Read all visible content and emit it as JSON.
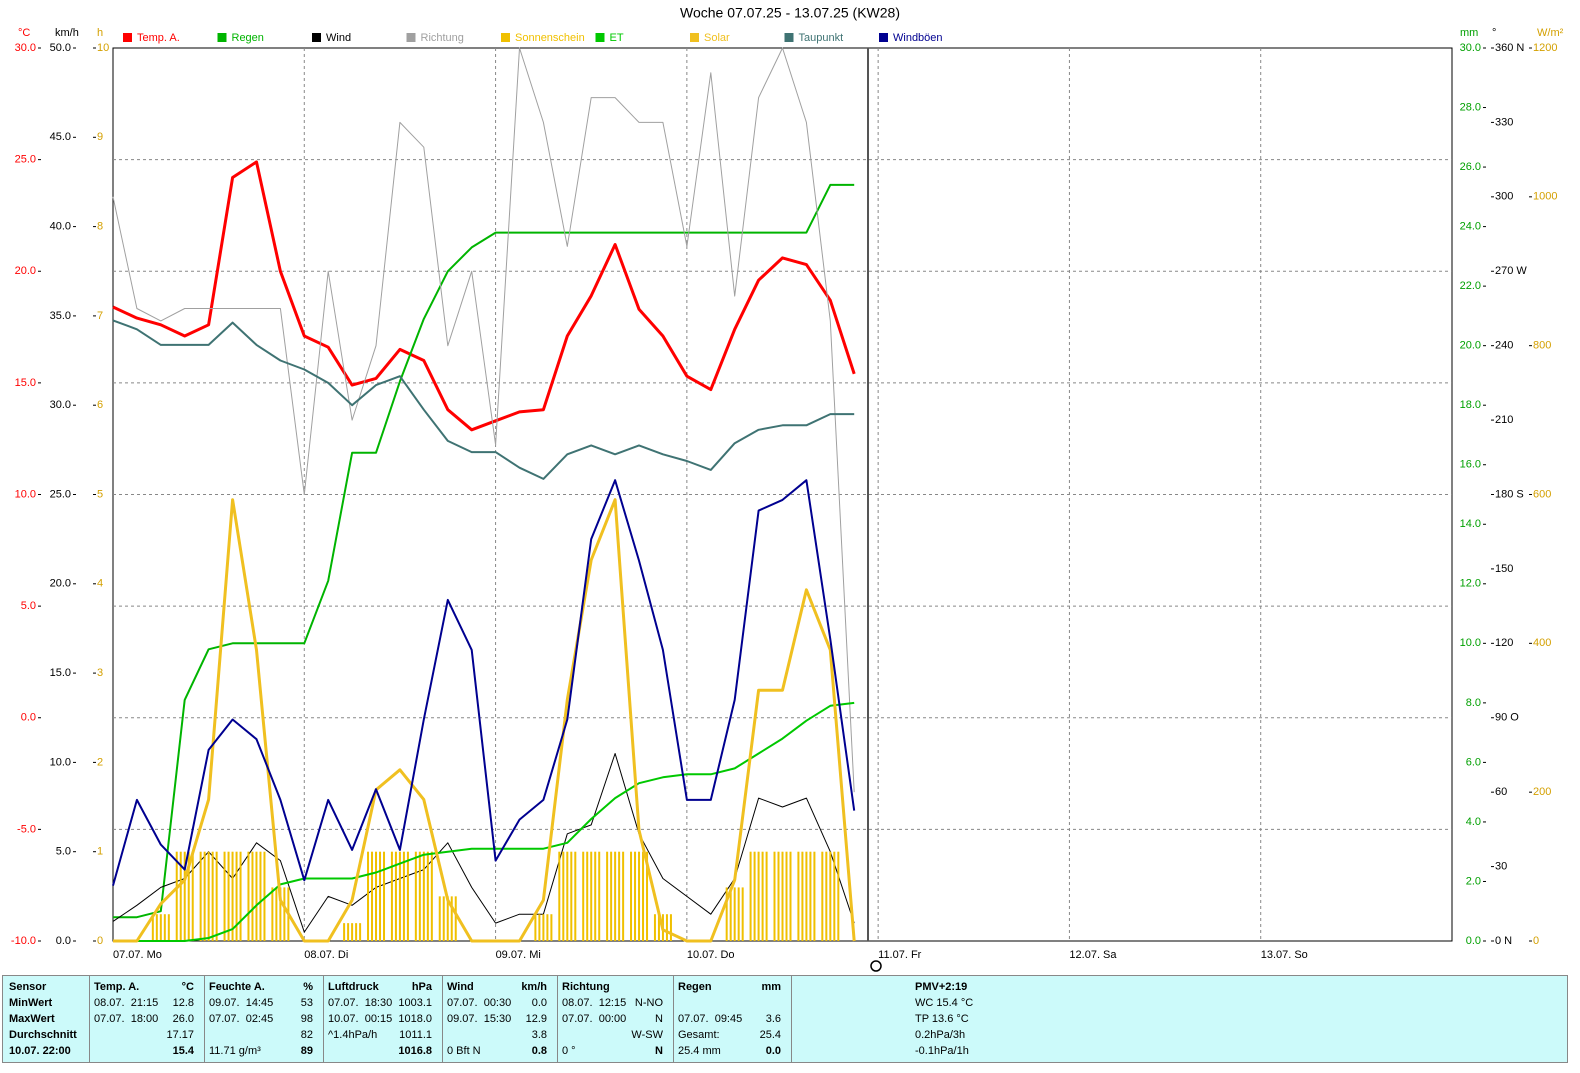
{
  "chart_data": {
    "type": "line",
    "title": "Woche 07.07.25 - 13.07.25 (KW28)",
    "categories": [
      "07.07. Mo",
      null,
      null,
      null,
      null,
      null,
      null,
      null,
      "08.07. Di",
      null,
      null,
      null,
      null,
      null,
      null,
      null,
      "09.07. Mi",
      null,
      null,
      null,
      null,
      null,
      null,
      null,
      "10.07. Do",
      null,
      null,
      null,
      null,
      null,
      null,
      null,
      "11.07. Fr",
      null,
      null,
      null,
      null,
      null,
      null,
      null,
      "12.07. Sa",
      null,
      null,
      null,
      null,
      null,
      null,
      null,
      "13.07. So",
      null,
      null,
      null,
      null,
      null,
      null,
      null,
      null
    ],
    "grid": true,
    "axes": [
      {
        "unit": "°C",
        "color": "#ff0000",
        "lim": [
          -10,
          30
        ],
        "ticks": [
          {
            "value": -10,
            "label": "-10.0"
          },
          {
            "value": -5,
            "label": "-5.0"
          },
          {
            "value": 0,
            "label": "0.0"
          },
          {
            "value": 5,
            "label": "5.0"
          },
          {
            "value": 10,
            "label": "10.0"
          },
          {
            "value": 15,
            "label": "15.0"
          },
          {
            "value": 20,
            "label": "20.0"
          },
          {
            "value": 25,
            "label": "25.0"
          },
          {
            "value": 30,
            "label": "30.0"
          }
        ]
      },
      {
        "unit": "km/h",
        "color": "#000000",
        "lim": [
          0,
          50
        ],
        "ticks": [
          {
            "value": 0,
            "label": "0.0"
          },
          {
            "value": 5,
            "label": "5.0"
          },
          {
            "value": 10,
            "label": "10.0"
          },
          {
            "value": 15,
            "label": "15.0"
          },
          {
            "value": 20,
            "label": "20.0"
          },
          {
            "value": 25,
            "label": "25.0"
          },
          {
            "value": 30,
            "label": "30.0"
          },
          {
            "value": 35,
            "label": "35.0"
          },
          {
            "value": 40,
            "label": "40.0"
          },
          {
            "value": 45,
            "label": "45.0"
          },
          {
            "value": 50,
            "label": "50.0"
          }
        ]
      },
      {
        "unit": "h",
        "color": "#d4a000",
        "lim": [
          0,
          10
        ],
        "ticks": [
          0,
          1,
          2,
          3,
          4,
          5,
          6,
          7,
          8,
          9,
          10
        ]
      },
      {
        "unit": "mm",
        "color": "#00a000",
        "lim": [
          0,
          30
        ],
        "ticks": [
          {
            "value": 0,
            "label": "0.0"
          },
          {
            "value": 2,
            "label": "2.0"
          },
          {
            "value": 4,
            "label": "4.0"
          },
          {
            "value": 6,
            "label": "6.0"
          },
          {
            "value": 8,
            "label": "8.0"
          },
          {
            "value": 10,
            "label": "10.0"
          },
          {
            "value": 12,
            "label": "12.0"
          },
          {
            "value": 14,
            "label": "14.0"
          },
          {
            "value": 16,
            "label": "16.0"
          },
          {
            "value": 18,
            "label": "18.0"
          },
          {
            "value": 20,
            "label": "20.0"
          },
          {
            "value": 22,
            "label": "22.0"
          },
          {
            "value": 24,
            "label": "24.0"
          },
          {
            "value": 26,
            "label": "26.0"
          },
          {
            "value": 28,
            "label": "28.0"
          },
          {
            "value": 30,
            "label": "30.0"
          }
        ]
      },
      {
        "unit": "°",
        "color": "#000000",
        "lim": [
          0,
          360
        ],
        "ticks": [
          {
            "value": 0,
            "label": "0 N"
          },
          30,
          60,
          {
            "value": 90,
            "label": "90 O"
          },
          120,
          150,
          {
            "value": 180,
            "label": "180 S"
          },
          210,
          240,
          {
            "value": 270,
            "label": "270 W"
          },
          300,
          330,
          {
            "value": 360,
            "label": "360 N"
          }
        ]
      },
      {
        "unit": "W/m²",
        "color": "#d4a000",
        "lim": [
          0,
          1200
        ],
        "ticks": [
          0,
          200,
          400,
          600,
          800,
          1000,
          1200
        ]
      }
    ],
    "series": [
      {
        "name": "Temp. A.",
        "color": "#ff0000",
        "axis": 0,
        "width": 3,
        "values": [
          18.4,
          17.9,
          17.6,
          17.1,
          17.6,
          24.2,
          24.9,
          20.0,
          17.1,
          16.6,
          14.9,
          15.2,
          16.5,
          16.0,
          13.8,
          12.9,
          13.3,
          13.7,
          13.8,
          17.1,
          18.9,
          21.2,
          18.3,
          17.1,
          15.3,
          14.7,
          17.4,
          19.6,
          20.6,
          20.3,
          18.7,
          15.4,
          null,
          null,
          null,
          null,
          null,
          null,
          null,
          null,
          null,
          null,
          null,
          null,
          null,
          null,
          null,
          null,
          null,
          null,
          null,
          null,
          null,
          null,
          null,
          null,
          null
        ]
      },
      {
        "name": "Regen",
        "color": "#00b400",
        "axis": 3,
        "width": 2,
        "values": [
          0.8,
          0.8,
          1.0,
          8.1,
          9.8,
          10.0,
          10.0,
          10.0,
          10.0,
          12.1,
          16.4,
          16.4,
          18.8,
          20.9,
          22.5,
          23.3,
          23.8,
          23.8,
          23.8,
          23.8,
          23.8,
          23.8,
          23.8,
          23.8,
          23.8,
          23.8,
          23.8,
          23.8,
          23.8,
          23.8,
          25.4,
          25.4,
          null,
          null,
          null,
          null,
          null,
          null,
          null,
          null,
          null,
          null,
          null,
          null,
          null,
          null,
          null,
          null,
          null,
          null,
          null,
          null,
          null,
          null,
          null,
          null,
          null
        ]
      },
      {
        "name": "Wind",
        "color": "#000000",
        "axis": 1,
        "width": 1,
        "values": [
          1.1,
          2.0,
          3.0,
          3.5,
          5.0,
          3.5,
          5.5,
          4.5,
          0.5,
          2.5,
          2.0,
          3.0,
          3.5,
          4.0,
          5.5,
          3.0,
          1.0,
          1.5,
          1.5,
          6.0,
          6.5,
          10.5,
          6.0,
          3.5,
          2.5,
          1.5,
          3.5,
          8.0,
          7.5,
          8.0,
          5.0,
          1.0,
          null,
          null,
          null,
          null,
          null,
          null,
          null,
          null,
          null,
          null,
          null,
          null,
          null,
          null,
          null,
          null,
          null,
          null,
          null,
          null,
          null,
          null,
          null,
          null,
          null
        ]
      },
      {
        "name": "Richtung",
        "color": "#a0a0a0",
        "axis": 4,
        "width": 1,
        "values": [
          300,
          255,
          250,
          255,
          255,
          255,
          255,
          255,
          180,
          270,
          210,
          240,
          330,
          320,
          240,
          270,
          200,
          360,
          330,
          280,
          340,
          340,
          330,
          330,
          280,
          350,
          260,
          340,
          360,
          330,
          250,
          60,
          null,
          null,
          null,
          null,
          null,
          null,
          null,
          null,
          null,
          null,
          null,
          null,
          null,
          null,
          null,
          null,
          null,
          null,
          null,
          null,
          null,
          null,
          null,
          null,
          null
        ]
      },
      {
        "name": "Sonnenschein",
        "color": "#f0c000",
        "axis": 2,
        "type": "bar",
        "values": [
          0,
          0,
          0.3,
          1,
          1,
          1,
          1,
          0.6,
          0,
          0,
          0.2,
          1,
          1,
          1,
          0.5,
          0,
          0,
          0,
          0.3,
          1,
          1,
          1,
          1,
          0.3,
          0,
          0,
          0.6,
          1,
          1,
          1,
          1,
          0,
          null,
          null,
          null,
          null,
          null,
          null,
          null,
          null,
          null,
          null,
          null,
          null,
          null,
          null,
          null,
          null,
          null,
          null,
          null,
          null,
          null,
          null,
          null,
          null,
          null
        ]
      },
      {
        "name": "ET",
        "color": "#00c800",
        "axis": 3,
        "width": 2,
        "values": [
          0,
          0,
          0,
          0,
          0.1,
          0.4,
          1.2,
          1.9,
          2.1,
          2.1,
          2.1,
          2.3,
          2.6,
          2.9,
          3.0,
          3.1,
          3.1,
          3.1,
          3.1,
          3.3,
          4.1,
          4.8,
          5.3,
          5.5,
          5.6,
          5.6,
          5.8,
          6.3,
          6.8,
          7.4,
          7.9,
          8.0,
          null,
          null,
          null,
          null,
          null,
          null,
          null,
          null,
          null,
          null,
          null,
          null,
          null,
          null,
          null,
          null,
          null,
          null,
          null,
          null,
          null,
          null,
          null,
          null,
          null
        ]
      },
      {
        "name": "Solar",
        "color": "#f0c020",
        "axis": 5,
        "width": 3,
        "values": [
          0,
          0,
          50,
          82,
          190,
          593,
          391,
          55,
          0,
          0,
          55,
          203,
          230,
          190,
          55,
          0,
          0,
          0,
          55,
          324,
          512,
          593,
          149,
          15,
          0,
          0,
          82,
          337,
          337,
          472,
          391,
          0,
          null,
          null,
          null,
          null,
          null,
          null,
          null,
          null,
          null,
          null,
          null,
          null,
          null,
          null,
          null,
          null,
          null,
          null,
          null,
          null,
          null,
          null,
          null,
          null,
          null
        ]
      },
      {
        "name": "Taupunkt",
        "color": "#3f7373",
        "axis": 0,
        "width": 2,
        "values": [
          17.8,
          17.4,
          16.7,
          16.7,
          16.7,
          17.7,
          16.7,
          16.0,
          15.6,
          15.0,
          14.0,
          14.9,
          15.3,
          13.8,
          12.4,
          11.9,
          11.9,
          11.2,
          10.7,
          11.8,
          12.2,
          11.8,
          12.2,
          11.8,
          11.5,
          11.1,
          12.3,
          12.9,
          13.1,
          13.1,
          13.6,
          13.6,
          null,
          null,
          null,
          null,
          null,
          null,
          null,
          null,
          null,
          null,
          null,
          null,
          null,
          null,
          null,
          null,
          null,
          null,
          null,
          null,
          null,
          null,
          null,
          null,
          null
        ]
      },
      {
        "name": "Windböen",
        "color": "#000090",
        "axis": 1,
        "width": 2,
        "values": [
          3.1,
          7.9,
          5.4,
          4.0,
          10.7,
          12.4,
          11.3,
          7.9,
          3.4,
          7.9,
          5.1,
          8.5,
          5.1,
          12.4,
          19.1,
          16.3,
          4.5,
          6.8,
          7.9,
          12.4,
          22.5,
          25.8,
          21.3,
          16.3,
          7.9,
          7.9,
          13.5,
          24.1,
          24.7,
          25.8,
          16.9,
          7.3,
          null,
          null,
          null,
          null,
          null,
          null,
          null,
          null,
          null,
          null,
          null,
          null,
          null,
          null,
          null,
          null,
          null,
          null,
          null,
          null,
          null,
          null,
          null,
          null,
          null
        ]
      }
    ]
  },
  "footer": {
    "labels": [
      "Sensor",
      "MinWert",
      "MaxWert",
      "Durchschnitt",
      "10.07. 22:00"
    ],
    "columns": [
      {
        "title": "Temp. A.",
        "unit": "°C",
        "rows": [
          [
            "08.07.  21:15",
            "12.8"
          ],
          [
            "07.07.  18:00",
            "26.0"
          ],
          [
            null,
            "17.17"
          ],
          [
            null,
            "15.4"
          ]
        ]
      },
      {
        "title": "Feuchte A.",
        "unit": "%",
        "rows": [
          [
            "09.07.  14:45",
            "53"
          ],
          [
            "07.07.  02:45",
            "98"
          ],
          [
            null,
            "82"
          ],
          [
            "11.71 g/m³",
            "89"
          ]
        ]
      },
      {
        "title": "Luftdruck",
        "unit": "hPa",
        "rows": [
          [
            "07.07.  18:30",
            "1003.1"
          ],
          [
            "10.07.  00:15",
            "1018.0"
          ],
          [
            "^1.4hPa/h",
            "1011.1"
          ],
          [
            null,
            "1016.8"
          ]
        ]
      },
      {
        "title": "Wind",
        "unit": "km/h",
        "rows": [
          [
            "07.07.  00:30",
            "0.0"
          ],
          [
            "09.07.  15:30",
            "12.9"
          ],
          [
            null,
            "3.8"
          ],
          [
            "0 Bft N",
            "0.8"
          ]
        ]
      },
      {
        "title": "Richtung",
        "rows": [
          [
            "08.07.  12:15",
            "N-NO"
          ],
          [
            "07.07.  00:00",
            "N"
          ],
          [
            null,
            "W-SW"
          ],
          [
            "0 °",
            "N"
          ]
        ]
      },
      {
        "title": "Regen",
        "unit": "mm",
        "rows": [
          [
            null,
            null
          ],
          [
            "07.07.  09:45",
            "3.6"
          ],
          [
            "Gesamt:",
            "25.4"
          ],
          [
            "25.4 mm",
            "0.0"
          ]
        ]
      }
    ],
    "extra": [
      "PMV+2:19",
      "WC 15.4 °C",
      "TP 13.6 °C",
      "0.2hPa/3h",
      "-0.1hPa/1h"
    ]
  }
}
